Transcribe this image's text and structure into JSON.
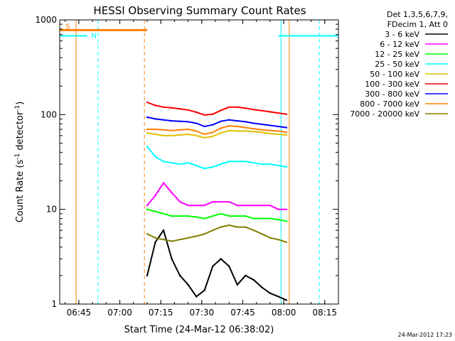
{
  "chart_data": {
    "type": "line",
    "title": "HESSI Observing Summary Count Rates",
    "xlabel": "Start Time (24-Mar-12 06:38:02)",
    "ylabel": "Count Rate (s⁻¹ detector⁻¹)",
    "ylabel_main": "Count Rate (s",
    "ylabel_sup1": "-1",
    "ylabel_mid": " detector",
    "ylabel_sup2": "-1",
    "ylabel_end": ")",
    "y_scale": "log",
    "ylim": [
      1,
      1000
    ],
    "xlim": [
      "06:38",
      "08:20"
    ],
    "x_ticks": [
      "06:45",
      "07:00",
      "07:15",
      "07:30",
      "07:45",
      "08:00",
      "08:15"
    ],
    "y_ticks": [
      "1",
      "10",
      "100",
      "1000"
    ],
    "grid": false,
    "legend": {
      "placement": "right",
      "header": [
        "Det 1,3,5,6,7,9,",
        "FDecim 1, Att 0"
      ],
      "entries": [
        {
          "label": "3 - 6 keV",
          "color": "#000000"
        },
        {
          "label": "6 - 12 keV",
          "color": "#ff00ff"
        },
        {
          "label": "12 - 25 keV",
          "color": "#00ff00"
        },
        {
          "label": "25 - 50 keV",
          "color": "#00ffff"
        },
        {
          "label": "50 - 100 keV",
          "color": "#e0c000"
        },
        {
          "label": "100 - 300 keV",
          "color": "#ff0000"
        },
        {
          "label": "300 - 800 keV",
          "color": "#0000ff"
        },
        {
          "label": "800 - 7000 keV",
          "color": "#ff8000"
        },
        {
          "label": "7000 - 20000 keV",
          "color": "#808000"
        }
      ]
    },
    "annotations": {
      "S": {
        "label": "S",
        "color": "#ff8000",
        "start": "06:38",
        "end": "07:10",
        "level": 780
      },
      "N": {
        "label": "N",
        "color": "#00ffff",
        "segments": [
          [
            "06:38",
            "06:48"
          ],
          [
            "07:58",
            "08:20"
          ]
        ],
        "level": 680
      }
    },
    "vertical_markers": [
      {
        "time": "06:44",
        "color": "#ff8000",
        "style": "solid"
      },
      {
        "time": "06:52",
        "color": "#00ffff",
        "style": "dashed"
      },
      {
        "time": "07:09",
        "color": "#ff8000",
        "style": "dashed"
      },
      {
        "time": "07:59",
        "color": "#00ffff",
        "style": "solid"
      },
      {
        "time": "08:02",
        "color": "#ff8000",
        "style": "solid"
      },
      {
        "time": "08:13",
        "color": "#00ffff",
        "style": "dashed"
      }
    ],
    "data_window": [
      "07:10",
      "08:02"
    ],
    "series": [
      {
        "name": "3 - 6 keV",
        "color": "#000000",
        "x": [
          "07:10",
          "07:13",
          "07:16",
          "07:19",
          "07:22",
          "07:25",
          "07:28",
          "07:31",
          "07:34",
          "07:37",
          "07:40",
          "07:43",
          "07:46",
          "07:49",
          "07:52",
          "07:55",
          "07:58",
          "08:01"
        ],
        "y": [
          2.0,
          4.5,
          6.0,
          3.0,
          2.0,
          1.6,
          1.2,
          1.4,
          2.5,
          3.0,
          2.5,
          1.6,
          2.0,
          1.8,
          1.5,
          1.3,
          1.2,
          1.1
        ]
      },
      {
        "name": "6 - 12 keV",
        "color": "#ff00ff",
        "x": [
          "07:10",
          "07:13",
          "07:16",
          "07:19",
          "07:22",
          "07:25",
          "07:28",
          "07:31",
          "07:34",
          "07:37",
          "07:40",
          "07:43",
          "07:46",
          "07:49",
          "07:52",
          "07:55",
          "07:58",
          "08:01"
        ],
        "y": [
          11,
          14,
          19,
          15,
          12,
          11,
          11,
          11,
          12,
          12,
          12,
          11,
          11,
          11,
          11,
          11,
          10,
          10
        ]
      },
      {
        "name": "12 - 25 keV",
        "color": "#00ff00",
        "x": [
          "07:10",
          "07:13",
          "07:16",
          "07:19",
          "07:22",
          "07:25",
          "07:28",
          "07:31",
          "07:34",
          "07:37",
          "07:40",
          "07:43",
          "07:46",
          "07:49",
          "07:52",
          "07:55",
          "07:58",
          "08:01"
        ],
        "y": [
          10,
          9.5,
          9.0,
          8.5,
          8.5,
          8.5,
          8.3,
          8.0,
          8.5,
          9.0,
          8.5,
          8.5,
          8.5,
          8.0,
          8.0,
          8.0,
          7.8,
          7.5
        ]
      },
      {
        "name": "25 - 50 keV",
        "color": "#00ffff",
        "x": [
          "07:10",
          "07:13",
          "07:16",
          "07:19",
          "07:22",
          "07:25",
          "07:28",
          "07:31",
          "07:34",
          "07:37",
          "07:40",
          "07:43",
          "07:46",
          "07:49",
          "07:52",
          "07:55",
          "07:58",
          "08:01"
        ],
        "y": [
          46,
          36,
          32,
          31,
          30,
          31,
          29,
          27,
          28,
          30,
          32,
          32,
          32,
          31,
          30,
          30,
          29,
          28
        ]
      },
      {
        "name": "50 - 100 keV",
        "color": "#e0c000",
        "x": [
          "07:10",
          "07:13",
          "07:16",
          "07:19",
          "07:22",
          "07:25",
          "07:28",
          "07:31",
          "07:34",
          "07:37",
          "07:40",
          "07:43",
          "07:46",
          "07:49",
          "07:52",
          "07:55",
          "07:58",
          "08:01"
        ],
        "y": [
          64,
          62,
          60,
          60,
          61,
          62,
          60,
          57,
          59,
          64,
          68,
          67,
          67,
          66,
          65,
          63,
          62,
          61
        ]
      },
      {
        "name": "100 - 300 keV",
        "color": "#ff0000",
        "x": [
          "07:10",
          "07:13",
          "07:16",
          "07:19",
          "07:22",
          "07:25",
          "07:28",
          "07:31",
          "07:34",
          "07:37",
          "07:40",
          "07:43",
          "07:46",
          "07:49",
          "07:52",
          "07:55",
          "07:58",
          "08:01"
        ],
        "y": [
          135,
          125,
          120,
          118,
          115,
          112,
          106,
          99,
          101,
          111,
          120,
          120,
          117,
          113,
          110,
          107,
          104,
          101
        ]
      },
      {
        "name": "300 - 800 keV",
        "color": "#0000ff",
        "x": [
          "07:10",
          "07:13",
          "07:16",
          "07:19",
          "07:22",
          "07:25",
          "07:28",
          "07:31",
          "07:34",
          "07:37",
          "07:40",
          "07:43",
          "07:46",
          "07:49",
          "07:52",
          "07:55",
          "07:58",
          "08:01"
        ],
        "y": [
          94,
          90,
          88,
          86,
          85,
          84,
          81,
          75,
          78,
          85,
          88,
          86,
          84,
          81,
          79,
          77,
          75,
          73
        ]
      },
      {
        "name": "800 - 7000 keV",
        "color": "#ff8000",
        "x": [
          "07:10",
          "07:13",
          "07:16",
          "07:19",
          "07:22",
          "07:25",
          "07:28",
          "07:31",
          "07:34",
          "07:37",
          "07:40",
          "07:43",
          "07:46",
          "07:49",
          "07:52",
          "07:55",
          "07:58",
          "08:01"
        ],
        "y": [
          70,
          70,
          69,
          68,
          69,
          70,
          67,
          62,
          65,
          72,
          76,
          75,
          73,
          71,
          69,
          68,
          67,
          65
        ]
      },
      {
        "name": "7000 - 20000 keV",
        "color": "#808000",
        "x": [
          "07:10",
          "07:13",
          "07:16",
          "07:19",
          "07:22",
          "07:25",
          "07:28",
          "07:31",
          "07:34",
          "07:37",
          "07:40",
          "07:43",
          "07:46",
          "07:49",
          "07:52",
          "07:55",
          "07:58",
          "08:01"
        ],
        "y": [
          5.5,
          5.0,
          4.8,
          4.6,
          4.8,
          5.0,
          5.2,
          5.5,
          6.0,
          6.5,
          6.8,
          6.5,
          6.5,
          6.0,
          5.5,
          5.0,
          4.8,
          4.5
        ]
      }
    ]
  },
  "footer": {
    "timestamp": "24-Mar-2012 17:23"
  }
}
